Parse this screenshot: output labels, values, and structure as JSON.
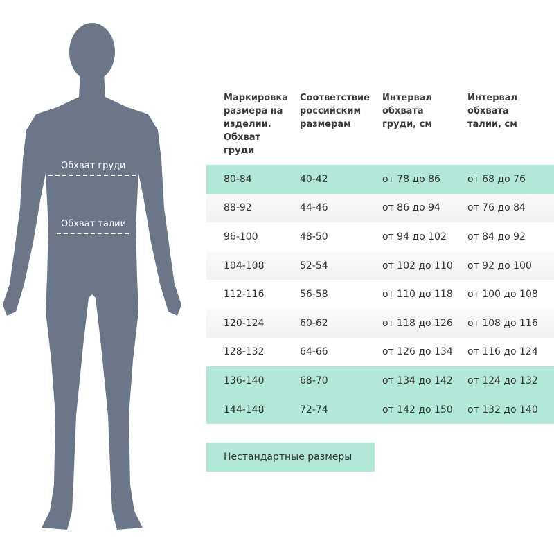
{
  "figure": {
    "chest_label": "Обхват груди",
    "waist_label": "Обхват талии",
    "silhouette_color": "#6b7689"
  },
  "table": {
    "headers": [
      "Маркировка размера на изделии. Обхват груди",
      "Соответствие российским размерам",
      "Интервал обхвата груди, см",
      "Интервал обхвата талии, см"
    ],
    "rows": [
      {
        "cells": [
          "80-84",
          "40-42",
          "от 78 до 86",
          "от 68 до 76"
        ],
        "highlight": true
      },
      {
        "cells": [
          "88-92",
          "44-46",
          "от 86 до 94",
          "от 76 до 84"
        ],
        "highlight": false
      },
      {
        "cells": [
          "96-100",
          "48-50",
          "от 94 до 102",
          "от 84 до 92"
        ],
        "highlight": false
      },
      {
        "cells": [
          "104-108",
          "52-54",
          "от 102 до 110",
          "от 92 до 100"
        ],
        "highlight": false
      },
      {
        "cells": [
          "112-116",
          "56-58",
          "от 110 до 118",
          "от 100 до 108"
        ],
        "highlight": false
      },
      {
        "cells": [
          "120-124",
          "60-62",
          "от 118 до 126",
          "от 108 до 116"
        ],
        "highlight": false
      },
      {
        "cells": [
          "128-132",
          "64-66",
          "от 126 до 134",
          "от 116 до 124"
        ],
        "highlight": false
      },
      {
        "cells": [
          "136-140",
          "68-70",
          "от 134 до 142",
          "от 124 до 132"
        ],
        "highlight": true
      },
      {
        "cells": [
          "144-148",
          "72-74",
          "от 142 до 150",
          "от 132 до 140"
        ],
        "highlight": true
      }
    ],
    "highlight_color": "#b2e8d8"
  },
  "legend": {
    "label": "Нестандартные размеры"
  }
}
